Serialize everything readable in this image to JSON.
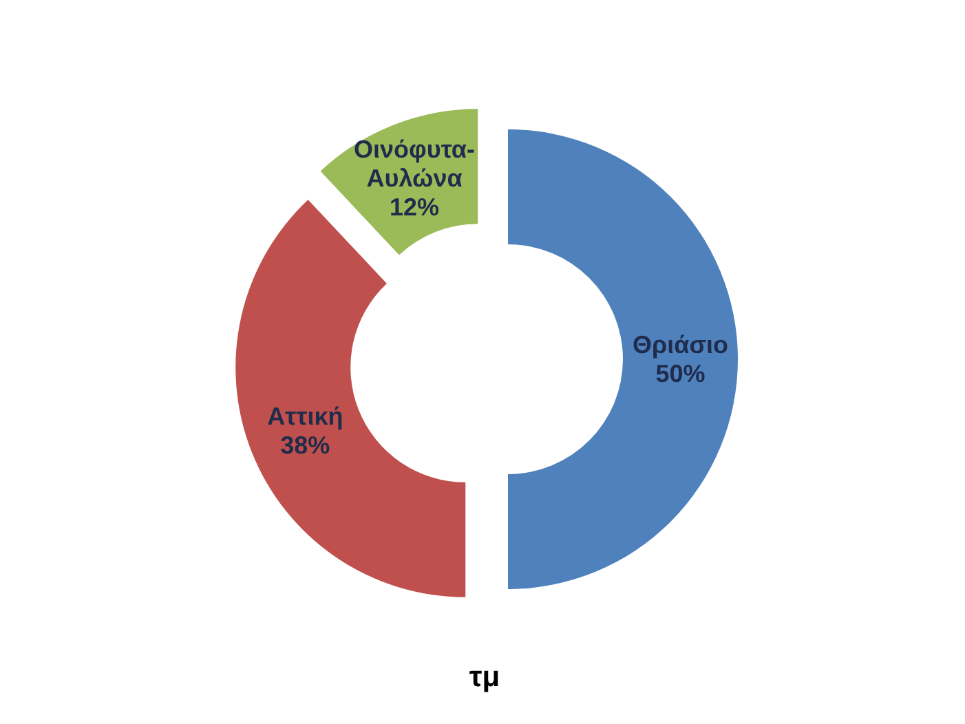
{
  "chart_data": {
    "type": "donut",
    "title": "τμ",
    "categories": [
      "Θριάσιο",
      "Αττική",
      "Οινόφυτα-Αυλώνα"
    ],
    "values": [
      50,
      38,
      12
    ],
    "value_labels": [
      "50%",
      "38%",
      "12%"
    ],
    "colors": [
      "#4f81bd",
      "#c0504d",
      "#9bbb59"
    ]
  }
}
